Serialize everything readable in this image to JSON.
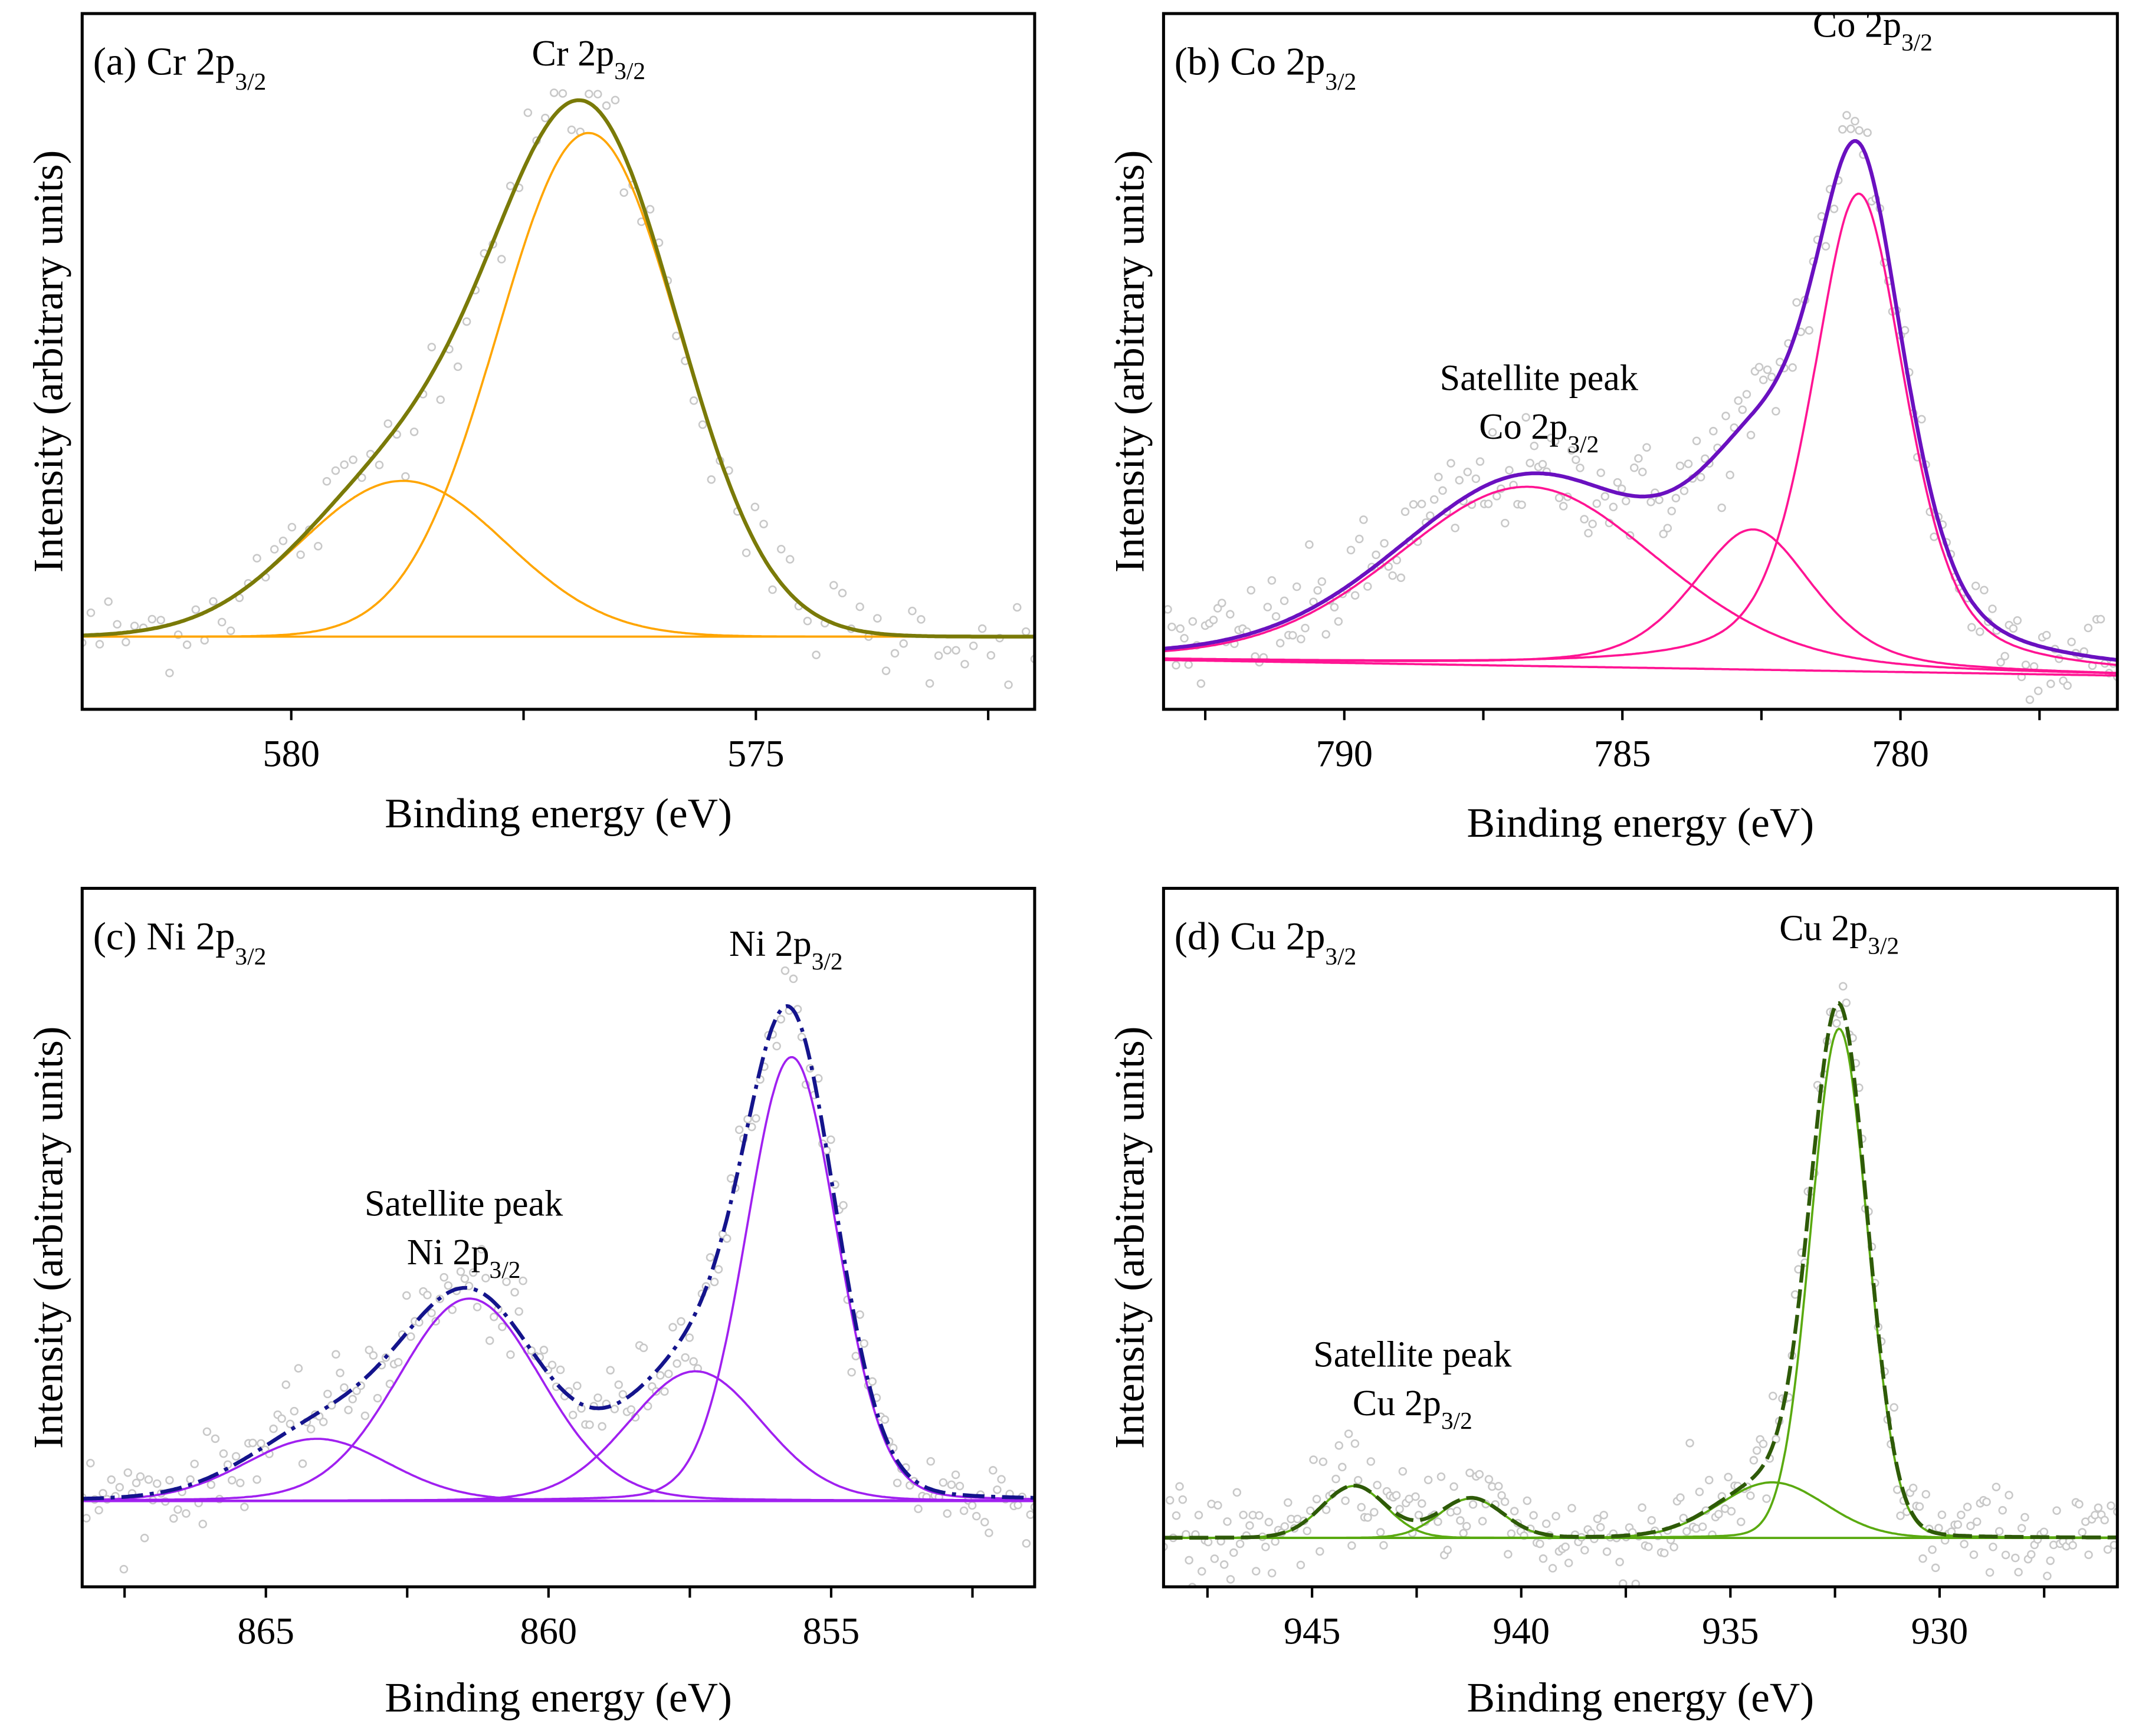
{
  "chart_data": [
    {
      "id": "a",
      "type": "line",
      "title": {
        "main": "(a) Cr 2p",
        "sub": "3/2"
      },
      "xlabel": "Binding energy (eV)",
      "ylabel": "Intensity (arbitrary units)",
      "xlim": [
        582.25,
        572.0
      ],
      "ylim": [
        -0.14,
        1.2
      ],
      "xticks": [
        580,
        575
      ],
      "minor_step": 2.5,
      "annotations": [
        {
          "line1": "",
          "main": "Cr 2p",
          "sub": "3/2",
          "x": 576.8,
          "y": 1.1
        }
      ],
      "baseline": [
        0.0,
        0.0
      ],
      "components": [
        {
          "center": 576.8,
          "amplitude": 0.97,
          "fwhm": 2.3,
          "lorentz_frac": 0.0
        },
        {
          "center": 578.8,
          "amplitude": 0.3,
          "fwhm": 2.6,
          "lorentz_frac": 0.0
        }
      ],
      "noise": 0.045,
      "n_points": 110,
      "colors": {
        "envelope": "#7a7a08",
        "component": "#ffa500",
        "points": "#c8c8c8",
        "baseline": "#ffa500"
      },
      "envelope_style": "solid"
    },
    {
      "id": "b",
      "type": "line",
      "title": {
        "main": "(b) Co 2p",
        "sub": "3/2"
      },
      "xlabel": "Binding energy (eV)",
      "ylabel": "Intensity (arbitrary units)",
      "xlim": [
        793.25,
        776.1
      ],
      "ylim": [
        -0.095,
        1.245
      ],
      "xticks": [
        790,
        785,
        780
      ],
      "minor_step": 2.5,
      "annotations": [
        {
          "line1": "",
          "main": "Co 2p",
          "sub": "3/2",
          "x": 780.5,
          "y": 1.2
        },
        {
          "line1": "Satellite peak",
          "main": "Co 2p",
          "sub": "3/2",
          "x": 786.5,
          "y": 0.52
        }
      ],
      "baseline": [
        0.0,
        -0.03
      ],
      "components": [
        {
          "center": 780.75,
          "amplitude": 0.92,
          "fwhm": 2.0,
          "lorentz_frac": 0.5
        },
        {
          "center": 782.65,
          "amplitude": 0.27,
          "fwhm": 2.6,
          "lorentz_frac": 0.5
        },
        {
          "center": 786.7,
          "amplitude": 0.345,
          "fwhm": 5.6,
          "lorentz_frac": 0.2
        }
      ],
      "noise": 0.05,
      "n_points": 230,
      "colors": {
        "envelope": "#6a10c0",
        "component": "#ff1493",
        "points": "#c8c8c8",
        "baseline": "#ff1493"
      },
      "envelope_style": "solid"
    },
    {
      "id": "c",
      "type": "line",
      "title": {
        "main": "(c) Ni 2p",
        "sub": "3/2"
      },
      "xlabel": "Binding energy (eV)",
      "ylabel": "Intensity (arbitrary units)",
      "xlim": [
        868.25,
        851.4
      ],
      "ylim": [
        -0.165,
        1.18
      ],
      "xticks": [
        865,
        860,
        855
      ],
      "minor_step": 2.5,
      "annotations": [
        {
          "line1": "",
          "main": "Ni 2p",
          "sub": "3/2",
          "x": 855.8,
          "y": 1.05
        },
        {
          "line1": "Satellite peak",
          "main": "Ni 2p",
          "sub": "3/2",
          "x": 861.5,
          "y": 0.55
        }
      ],
      "baseline": [
        0.0,
        0.0
      ],
      "components": [
        {
          "center": 855.7,
          "amplitude": 0.855,
          "fwhm": 1.9,
          "lorentz_frac": 0.1
        },
        {
          "center": 857.4,
          "amplitude": 0.25,
          "fwhm": 2.8,
          "lorentz_frac": 0.1
        },
        {
          "center": 861.4,
          "amplitude": 0.39,
          "fwhm": 3.0,
          "lorentz_frac": 0.1
        },
        {
          "center": 864.1,
          "amplitude": 0.12,
          "fwhm": 3.0,
          "lorentz_frac": 0.1
        }
      ],
      "noise": 0.04,
      "n_points": 230,
      "colors": {
        "envelope": "#14148c",
        "component": "#a020f0",
        "points": "#c8c8c8",
        "baseline": "#a020f0"
      },
      "envelope_style": "dashdot"
    },
    {
      "id": "d",
      "type": "line",
      "title": {
        "main": "(d) Cu 2p",
        "sub": "3/2"
      },
      "xlabel": "Binding energy (eV)",
      "ylabel": "Intensity (arbitrary units)",
      "xlim": [
        948.55,
        925.75
      ],
      "ylim": [
        -0.094,
        1.25
      ],
      "xticks": [
        945,
        940,
        935,
        930
      ],
      "minor_step": 2.5,
      "annotations": [
        {
          "line1": "",
          "main": "Cu 2p",
          "sub": "3/2",
          "x": 932.4,
          "y": 1.15
        },
        {
          "line1": "Satellite peak",
          "main": "Cu 2p",
          "sub": "3/2",
          "x": 942.6,
          "y": 0.33
        }
      ],
      "baseline": [
        0.0,
        0.0
      ],
      "components": [
        {
          "center": 932.4,
          "amplitude": 0.98,
          "fwhm": 1.6,
          "lorentz_frac": 0.05
        },
        {
          "center": 934.0,
          "amplitude": 0.107,
          "fwhm": 3.0,
          "lorentz_frac": 0.05
        },
        {
          "center": 944.0,
          "amplitude": 0.1,
          "fwhm": 1.8,
          "lorentz_frac": 0.05
        },
        {
          "center": 941.2,
          "amplitude": 0.076,
          "fwhm": 1.8,
          "lorentz_frac": 0.05
        }
      ],
      "noise": 0.045,
      "n_points": 300,
      "colors": {
        "envelope": "#2e5a08",
        "component": "#5aaa10",
        "points": "#c8c8c8",
        "baseline": "#0a8a0a"
      },
      "envelope_style": "dashed"
    }
  ]
}
